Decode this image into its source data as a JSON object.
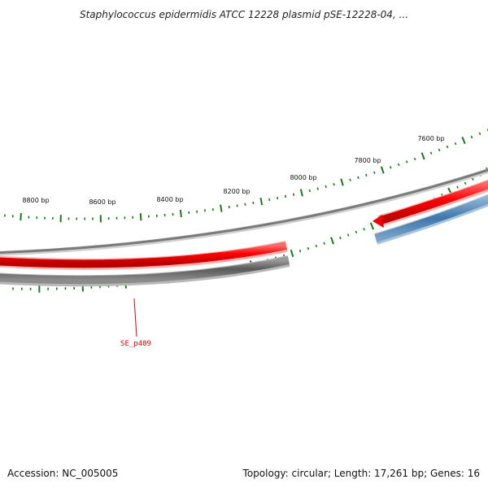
{
  "title": "Staphylococcus epidermidis ATCC 12228 plasmid pSE-12228-04, ...",
  "footer": {
    "accession": "Accession: NC_005005",
    "summary": "Topology: circular; Length: 17,261 bp; Genes: 16"
  },
  "ruler": {
    "labels": [
      "8800 bp",
      "8600 bp",
      "8400 bp",
      "8200 bp",
      "8000 bp",
      "7800 bp",
      "7600 bp"
    ],
    "tick_color": "#1a7a1a"
  },
  "genes": [
    {
      "label": "SE_p409",
      "color": "#dd0000"
    }
  ],
  "colors": {
    "backbone": "#8a8a8a",
    "red_strand": "#ff0000",
    "gray_strand": "#666666",
    "blue_strand": "#4a7fb0"
  }
}
